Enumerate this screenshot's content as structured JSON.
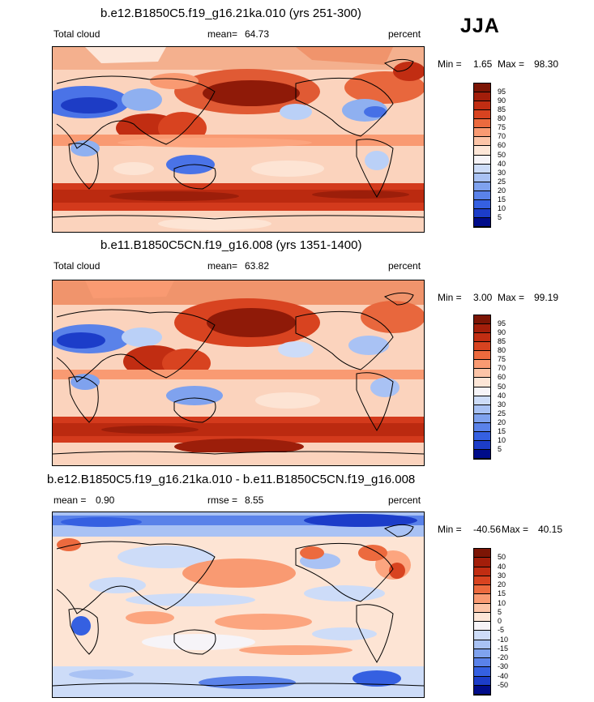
{
  "season": "JJA",
  "colors": {
    "pos": [
      "#fde4d4",
      "#fcc6a9",
      "#fca57f",
      "#f4774c",
      "#e55330",
      "#d33a1c",
      "#bb2a10",
      "#9c1e0a",
      "#6f1405"
    ],
    "neg": [
      "#f6f7fc",
      "#dbe6fb",
      "#bad0f7",
      "#8fb0f0",
      "#6a90ec",
      "#4670e6",
      "#2550dd",
      "#1236c6",
      "#081f95",
      "#02005e"
    ]
  },
  "chart_data": [
    {
      "type": "heatmap",
      "title": "b.e12.B1850C5.f19_g16.21ka.010 (yrs 251-300)",
      "left_label": "Total cloud",
      "mean_label": "mean=",
      "mean_value": "64.73",
      "units": "percent",
      "min_label": "Min =",
      "min_value": "1.65",
      "max_label": "Max =",
      "max_value": "98.30",
      "levels": [
        "95",
        "90",
        "85",
        "80",
        "75",
        "70",
        "60",
        "50",
        "40",
        "30",
        "25",
        "20",
        "15",
        "10",
        "5"
      ],
      "level_colors": [
        "#7c1505",
        "#a31e0a",
        "#c12d12",
        "#d84320",
        "#ec6a3e",
        "#f99a72",
        "#fcc4a7",
        "#fde6d7",
        "#f6f4f8",
        "#cddcf8",
        "#a9c2f4",
        "#7fa2ee",
        "#5a82e9",
        "#3560e1",
        "#1c3dc9",
        "#000c8a"
      ]
    },
    {
      "type": "heatmap",
      "title": "b.e11.B1850C5CN.f19_g16.008 (yrs 1351-1400)",
      "left_label": "Total cloud",
      "mean_label": "mean=",
      "mean_value": "63.82",
      "units": "percent",
      "min_label": "Min =",
      "min_value": "3.00",
      "max_label": "Max =",
      "max_value": "99.19",
      "levels": [
        "95",
        "90",
        "85",
        "80",
        "75",
        "70",
        "60",
        "50",
        "40",
        "30",
        "25",
        "20",
        "15",
        "10",
        "5"
      ],
      "level_colors": [
        "#7c1505",
        "#a31e0a",
        "#c12d12",
        "#d84320",
        "#ec6a3e",
        "#f99a72",
        "#fcc4a7",
        "#fde6d7",
        "#f6f4f8",
        "#cddcf8",
        "#a9c2f4",
        "#7fa2ee",
        "#5a82e9",
        "#3560e1",
        "#1c3dc9",
        "#000c8a"
      ]
    },
    {
      "type": "heatmap",
      "title": "b.e12.B1850C5.f19_g16.21ka.010 - b.e11.B1850C5CN.f19_g16.008",
      "mean_label": "mean =",
      "mean_value": "0.90",
      "rmse_label": "rmse =",
      "rmse_value": "8.55",
      "units": "percent",
      "min_label": "Min =",
      "min_value": "-40.56",
      "max_label": "Max =",
      "max_value": "40.15",
      "levels": [
        "50",
        "40",
        "30",
        "20",
        "15",
        "10",
        "5",
        "0",
        "-5",
        "-10",
        "-15",
        "-20",
        "-30",
        "-40",
        "-50"
      ],
      "level_colors": [
        "#7c1505",
        "#a31e0a",
        "#c12d12",
        "#d84320",
        "#ec6a3e",
        "#f99a72",
        "#fcc4a7",
        "#fde6d7",
        "#f6f4f8",
        "#cddcf8",
        "#a9c2f4",
        "#7fa2ee",
        "#5a82e9",
        "#3560e1",
        "#1c3dc9",
        "#000c8a"
      ]
    }
  ]
}
